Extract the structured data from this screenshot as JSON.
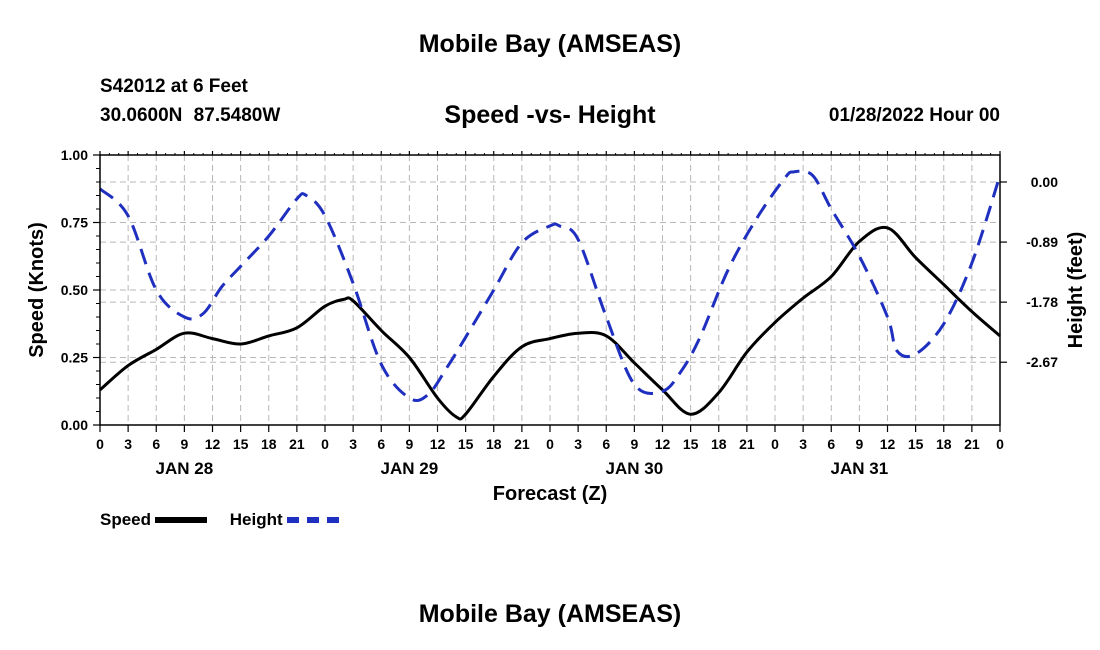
{
  "header": {
    "main_title": "Mobile Bay (AMSEAS)",
    "station": "S42012 at 6 Feet",
    "coords": "30.0600N 87.5480W",
    "chart_title": "Speed -vs- Height",
    "datetime": "01/28/2022 Hour 00"
  },
  "footer": {
    "title": "Mobile Bay (AMSEAS)"
  },
  "legend": {
    "speed_label": "Speed",
    "height_label": "Height"
  },
  "colors": {
    "speed": "#000000",
    "height": "#1f2fbf",
    "grid": "#b8b8b8"
  },
  "chart_data": {
    "type": "line",
    "title": "Speed -vs- Height",
    "xlabel": "Forecast (Z)",
    "ylabel": "Speed (Knots)",
    "y2label": "Height (feet)",
    "x_range_hours": [
      0,
      96
    ],
    "xticks_hours": [
      0,
      3,
      6,
      9,
      12,
      15,
      18,
      21,
      24,
      27,
      30,
      33,
      36,
      39,
      42,
      45,
      48,
      51,
      54,
      57,
      60,
      63,
      66,
      69,
      72,
      75,
      78,
      81,
      84,
      87,
      90,
      93,
      96
    ],
    "xtick_labels": [
      "0",
      "3",
      "6",
      "9",
      "12",
      "15",
      "18",
      "21",
      "0",
      "3",
      "6",
      "9",
      "12",
      "15",
      "18",
      "21",
      "0",
      "3",
      "6",
      "9",
      "12",
      "15",
      "18",
      "21",
      "0",
      "3",
      "6",
      "9",
      "12",
      "15",
      "18",
      "21",
      "0"
    ],
    "day_labels": [
      {
        "hour": 9,
        "label": "JAN 28"
      },
      {
        "hour": 33,
        "label": "JAN 29"
      },
      {
        "hour": 57,
        "label": "JAN 30"
      },
      {
        "hour": 81,
        "label": "JAN 31"
      }
    ],
    "ylim": [
      0,
      1
    ],
    "yticks": [
      0,
      0.25,
      0.5,
      0.75,
      1.0
    ],
    "ytick_labels": [
      "0.00",
      "0.25",
      "0.50",
      "0.75",
      "1.00"
    ],
    "y2lim": [
      -3.6,
      0.4
    ],
    "y2ticks": [
      0.0,
      -0.89,
      -1.78,
      -2.67
    ],
    "y2tick_labels": [
      "0.00",
      "-0.89",
      "-1.78",
      "-2.67"
    ],
    "series": [
      {
        "name": "Speed",
        "axis": "left",
        "style": "solid",
        "x": [
          0,
          3,
          6,
          9,
          12,
          15,
          18,
          21,
          24,
          26,
          27,
          30,
          33,
          36,
          38,
          39,
          42,
          45,
          48,
          51,
          54,
          57,
          60,
          63,
          66,
          69,
          72,
          75,
          78,
          81,
          84,
          87,
          90,
          93,
          96
        ],
        "values": [
          0.13,
          0.22,
          0.28,
          0.34,
          0.32,
          0.3,
          0.33,
          0.36,
          0.44,
          0.465,
          0.46,
          0.35,
          0.25,
          0.1,
          0.03,
          0.04,
          0.18,
          0.29,
          0.32,
          0.34,
          0.33,
          0.23,
          0.13,
          0.04,
          0.12,
          0.27,
          0.38,
          0.47,
          0.55,
          0.68,
          0.73,
          0.62,
          0.52,
          0.42,
          0.33
        ]
      },
      {
        "name": "Height",
        "axis": "right",
        "style": "dashed",
        "x": [
          0,
          3,
          6,
          9,
          11,
          13,
          15,
          18,
          21,
          22,
          24,
          27,
          30,
          33,
          35,
          37,
          39,
          42,
          45,
          48,
          49,
          51,
          54,
          57,
          60,
          62,
          64,
          67,
          70,
          73,
          74,
          76,
          78,
          81,
          84,
          85,
          87,
          90,
          93,
          96
        ],
        "values": [
          -0.1,
          -0.5,
          -1.6,
          -2.0,
          -1.95,
          -1.55,
          -1.25,
          -0.8,
          -0.25,
          -0.2,
          -0.5,
          -1.5,
          -2.7,
          -3.2,
          -3.15,
          -2.75,
          -2.3,
          -1.6,
          -0.9,
          -0.65,
          -0.65,
          -0.85,
          -2.0,
          -3.0,
          -3.1,
          -2.8,
          -2.3,
          -1.3,
          -0.55,
          0.05,
          0.15,
          0.1,
          -0.4,
          -1.1,
          -2.0,
          -2.5,
          -2.55,
          -2.1,
          -1.2,
          0.1
        ]
      }
    ]
  }
}
